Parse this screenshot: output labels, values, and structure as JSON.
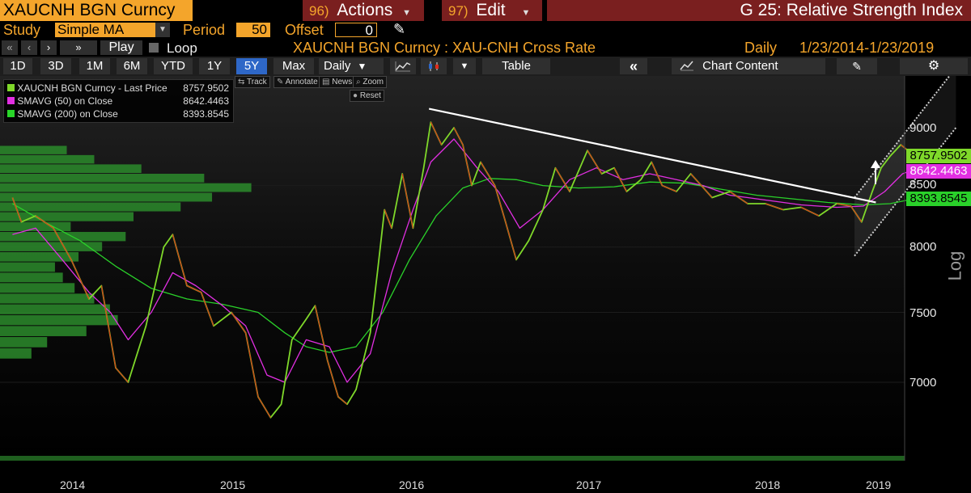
{
  "header": {
    "ticker": "XAUCNH BGN Curncy",
    "actions_num": "96)",
    "actions_label": "Actions",
    "edit_num": "97)",
    "edit_label": "Edit",
    "title": "G 25: Relative Strength Index"
  },
  "study": {
    "study_label": "Study",
    "study_value": "Simple MA",
    "period_label": "Period",
    "period_value": "50",
    "offset_label": "Offset",
    "offset_value": "0"
  },
  "controls": {
    "play_label": "Play",
    "loop_label": "Loop",
    "security_desc": "XAUCNH BGN Curncy : XAU-CNH Cross Rate",
    "frequency": "Daily",
    "date_range": "1/23/2014-1/23/2019"
  },
  "toolbar": {
    "ranges": [
      "1D",
      "3D",
      "1M",
      "6M",
      "YTD",
      "1Y",
      "5Y",
      "Max"
    ],
    "active_range": "5Y",
    "period_select": "Daily",
    "table_label": "Table",
    "chart_content_label": "Chart Content"
  },
  "chart_tools": {
    "track": "Track",
    "annotate": "Annotate",
    "news": "News",
    "zoom": "Zoom",
    "reset": "Reset"
  },
  "legend": [
    {
      "label": "XAUCNH BGN Curncy - Last Price",
      "value": "8757.9502",
      "color": "#7fd82a"
    },
    {
      "label": "SMAVG (50)  on Close",
      "value": "8642.4463",
      "color": "#e22fe2"
    },
    {
      "label": "SMAVG (200)  on Close",
      "value": "8393.8545",
      "color": "#29d629"
    }
  ],
  "colors": {
    "accent_orange": "#f4a52b",
    "header_red": "#7a1f1f",
    "price_up": "#7fd82a",
    "price_down": "#e02a1a",
    "sma50": "#e22fe2",
    "sma200": "#2ad12a",
    "volume_bars": "#2b8b2b",
    "channel": "#d0d0d0"
  },
  "chart_data": {
    "type": "line",
    "y_scale": "log",
    "y_axis_label": "Log",
    "y_ticks": [
      7000,
      7500,
      8000,
      8500,
      9000
    ],
    "x_ticks": [
      "2014",
      "2015",
      "2016",
      "2017",
      "2018",
      "2019"
    ],
    "last_value_labels": [
      "8757.9502",
      "8642.4463",
      "8393.8545"
    ],
    "series": [
      {
        "name": "XAUCNH BGN Curncy - Last Price",
        "points": [
          [
            2014.07,
            8400
          ],
          [
            2014.12,
            8200
          ],
          [
            2014.2,
            8250
          ],
          [
            2014.3,
            8150
          ],
          [
            2014.4,
            7900
          ],
          [
            2014.5,
            7600
          ],
          [
            2014.57,
            7700
          ],
          [
            2014.65,
            7100
          ],
          [
            2014.72,
            7000
          ],
          [
            2014.82,
            7400
          ],
          [
            2014.92,
            8000
          ],
          [
            2014.97,
            8100
          ],
          [
            2015.05,
            7700
          ],
          [
            2015.13,
            7650
          ],
          [
            2015.2,
            7400
          ],
          [
            2015.3,
            7500
          ],
          [
            2015.38,
            7350
          ],
          [
            2015.45,
            6900
          ],
          [
            2015.52,
            6760
          ],
          [
            2015.58,
            6850
          ],
          [
            2015.64,
            7300
          ],
          [
            2015.72,
            7450
          ],
          [
            2015.77,
            7550
          ],
          [
            2015.84,
            7150
          ],
          [
            2015.9,
            6900
          ],
          [
            2015.95,
            6850
          ],
          [
            2016.0,
            6950
          ],
          [
            2016.08,
            7350
          ],
          [
            2016.12,
            7800
          ],
          [
            2016.16,
            8300
          ],
          [
            2016.2,
            8150
          ],
          [
            2016.26,
            8600
          ],
          [
            2016.32,
            8150
          ],
          [
            2016.38,
            8650
          ],
          [
            2016.42,
            9050
          ],
          [
            2016.48,
            8850
          ],
          [
            2016.55,
            9000
          ],
          [
            2016.6,
            8850
          ],
          [
            2016.65,
            8500
          ],
          [
            2016.7,
            8700
          ],
          [
            2016.78,
            8500
          ],
          [
            2016.84,
            8200
          ],
          [
            2016.9,
            7900
          ],
          [
            2016.97,
            8050
          ],
          [
            2017.05,
            8300
          ],
          [
            2017.12,
            8650
          ],
          [
            2017.2,
            8450
          ],
          [
            2017.3,
            8800
          ],
          [
            2017.38,
            8600
          ],
          [
            2017.45,
            8650
          ],
          [
            2017.52,
            8450
          ],
          [
            2017.6,
            8550
          ],
          [
            2017.66,
            8700
          ],
          [
            2017.72,
            8500
          ],
          [
            2017.8,
            8450
          ],
          [
            2017.88,
            8600
          ],
          [
            2017.94,
            8500
          ],
          [
            2018.0,
            8400
          ],
          [
            2018.1,
            8450
          ],
          [
            2018.2,
            8350
          ],
          [
            2018.3,
            8350
          ],
          [
            2018.4,
            8300
          ],
          [
            2018.5,
            8320
          ],
          [
            2018.6,
            8250
          ],
          [
            2018.7,
            8350
          ],
          [
            2018.78,
            8330
          ],
          [
            2018.84,
            8200
          ],
          [
            2018.9,
            8450
          ],
          [
            2018.95,
            8650
          ],
          [
            2019.0,
            8750
          ],
          [
            2019.06,
            8850
          ],
          [
            2019.1,
            8800
          ],
          [
            2019.15,
            8757.95
          ]
        ]
      },
      {
        "name": "SMAVG (50)  on Close",
        "points": [
          [
            2014.07,
            8100
          ],
          [
            2014.2,
            8150
          ],
          [
            2014.35,
            7900
          ],
          [
            2014.5,
            7650
          ],
          [
            2014.62,
            7500
          ],
          [
            2014.72,
            7300
          ],
          [
            2014.85,
            7500
          ],
          [
            2014.97,
            7800
          ],
          [
            2015.1,
            7700
          ],
          [
            2015.25,
            7550
          ],
          [
            2015.38,
            7400
          ],
          [
            2015.5,
            7050
          ],
          [
            2015.6,
            7000
          ],
          [
            2015.72,
            7300
          ],
          [
            2015.85,
            7250
          ],
          [
            2015.95,
            7000
          ],
          [
            2016.08,
            7200
          ],
          [
            2016.2,
            7800
          ],
          [
            2016.32,
            8300
          ],
          [
            2016.42,
            8700
          ],
          [
            2016.55,
            8900
          ],
          [
            2016.68,
            8650
          ],
          [
            2016.8,
            8450
          ],
          [
            2016.92,
            8150
          ],
          [
            2017.05,
            8300
          ],
          [
            2017.2,
            8550
          ],
          [
            2017.35,
            8650
          ],
          [
            2017.5,
            8550
          ],
          [
            2017.65,
            8600
          ],
          [
            2017.8,
            8550
          ],
          [
            2017.95,
            8500
          ],
          [
            2018.1,
            8420
          ],
          [
            2018.3,
            8380
          ],
          [
            2018.5,
            8340
          ],
          [
            2018.7,
            8320
          ],
          [
            2018.85,
            8330
          ],
          [
            2018.97,
            8450
          ],
          [
            2019.07,
            8600
          ],
          [
            2019.15,
            8642.45
          ]
        ]
      },
      {
        "name": "SMAVG (200)  on Close",
        "points": [
          [
            2014.07,
            8350
          ],
          [
            2014.25,
            8200
          ],
          [
            2014.45,
            8050
          ],
          [
            2014.65,
            7850
          ],
          [
            2014.85,
            7680
          ],
          [
            2015.05,
            7600
          ],
          [
            2015.25,
            7560
          ],
          [
            2015.45,
            7500
          ],
          [
            2015.6,
            7350
          ],
          [
            2015.72,
            7250
          ],
          [
            2015.85,
            7210
          ],
          [
            2016.0,
            7250
          ],
          [
            2016.15,
            7500
          ],
          [
            2016.3,
            7900
          ],
          [
            2016.45,
            8250
          ],
          [
            2016.6,
            8480
          ],
          [
            2016.75,
            8560
          ],
          [
            2016.9,
            8550
          ],
          [
            2017.05,
            8500
          ],
          [
            2017.25,
            8480
          ],
          [
            2017.45,
            8490
          ],
          [
            2017.65,
            8530
          ],
          [
            2017.85,
            8520
          ],
          [
            2018.05,
            8470
          ],
          [
            2018.25,
            8420
          ],
          [
            2018.45,
            8390
          ],
          [
            2018.65,
            8360
          ],
          [
            2018.85,
            8340
          ],
          [
            2019.0,
            8350
          ],
          [
            2019.1,
            8380
          ],
          [
            2019.15,
            8393.85
          ]
        ]
      }
    ],
    "trendline": {
      "from": [
        2016.41,
        9170
      ],
      "to": [
        2018.92,
        8360
      ]
    },
    "channel": {
      "upper": {
        "from": [
          2018.8,
          8400
        ],
        "to": [
          2019.37,
          9550
        ]
      },
      "lower": {
        "from": [
          2018.8,
          7930
        ],
        "to": [
          2019.37,
          9000
        ]
      }
    },
    "volume_profile": [
      {
        "price": 8800,
        "value": 85
      },
      {
        "price": 8720,
        "value": 120
      },
      {
        "price": 8640,
        "value": 180
      },
      {
        "price": 8560,
        "value": 260
      },
      {
        "price": 8480,
        "value": 320
      },
      {
        "price": 8400,
        "value": 270
      },
      {
        "price": 8320,
        "value": 230
      },
      {
        "price": 8240,
        "value": 170
      },
      {
        "price": 8160,
        "value": 90
      },
      {
        "price": 8080,
        "value": 160
      },
      {
        "price": 8000,
        "value": 130
      },
      {
        "price": 7920,
        "value": 100
      },
      {
        "price": 7840,
        "value": 70
      },
      {
        "price": 7760,
        "value": 80
      },
      {
        "price": 7680,
        "value": 95
      },
      {
        "price": 7600,
        "value": 120
      },
      {
        "price": 7520,
        "value": 140
      },
      {
        "price": 7440,
        "value": 150
      },
      {
        "price": 7360,
        "value": 110
      },
      {
        "price": 7280,
        "value": 60
      },
      {
        "price": 7200,
        "value": 40
      }
    ],
    "volume_profile_xmax": 340
  }
}
